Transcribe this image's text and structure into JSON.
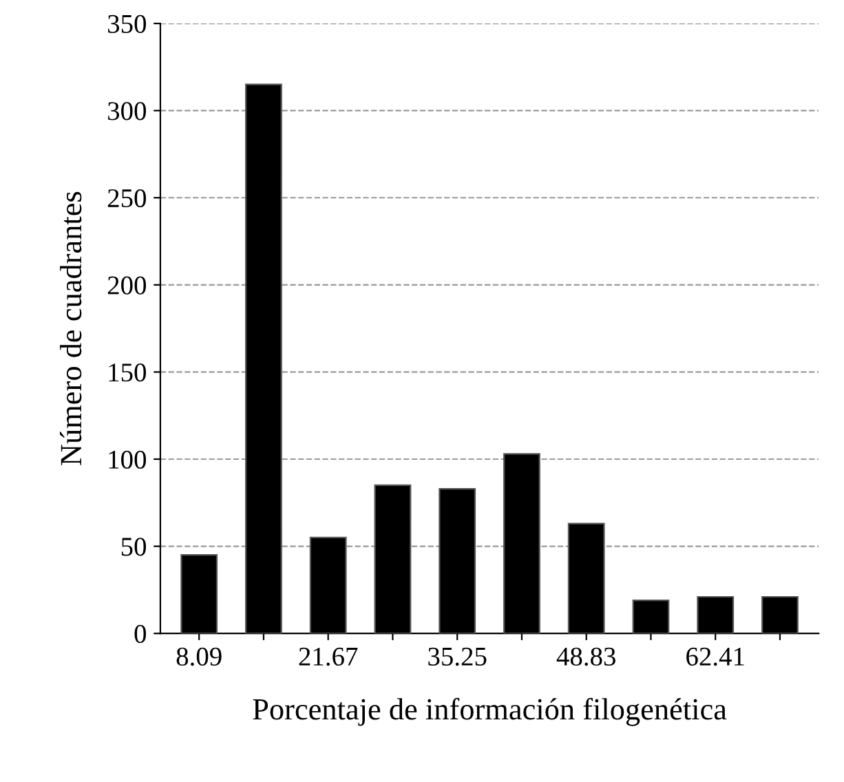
{
  "chart_data": {
    "type": "bar",
    "xlabel": "Porcentaje de información filogenética",
    "ylabel": "Número de cuadrantes",
    "categories": [
      "8.09",
      null,
      "21.67",
      null,
      "35.25",
      null,
      "48.83",
      null,
      "62.41",
      null
    ],
    "values": [
      45,
      315,
      55,
      85,
      83,
      103,
      63,
      19,
      21,
      21
    ],
    "color": "#000000",
    "ylim": [
      0,
      350
    ],
    "yticks": [
      0,
      50,
      100,
      150,
      200,
      250,
      300,
      350
    ],
    "grid": "y",
    "line_style": "dashed"
  }
}
